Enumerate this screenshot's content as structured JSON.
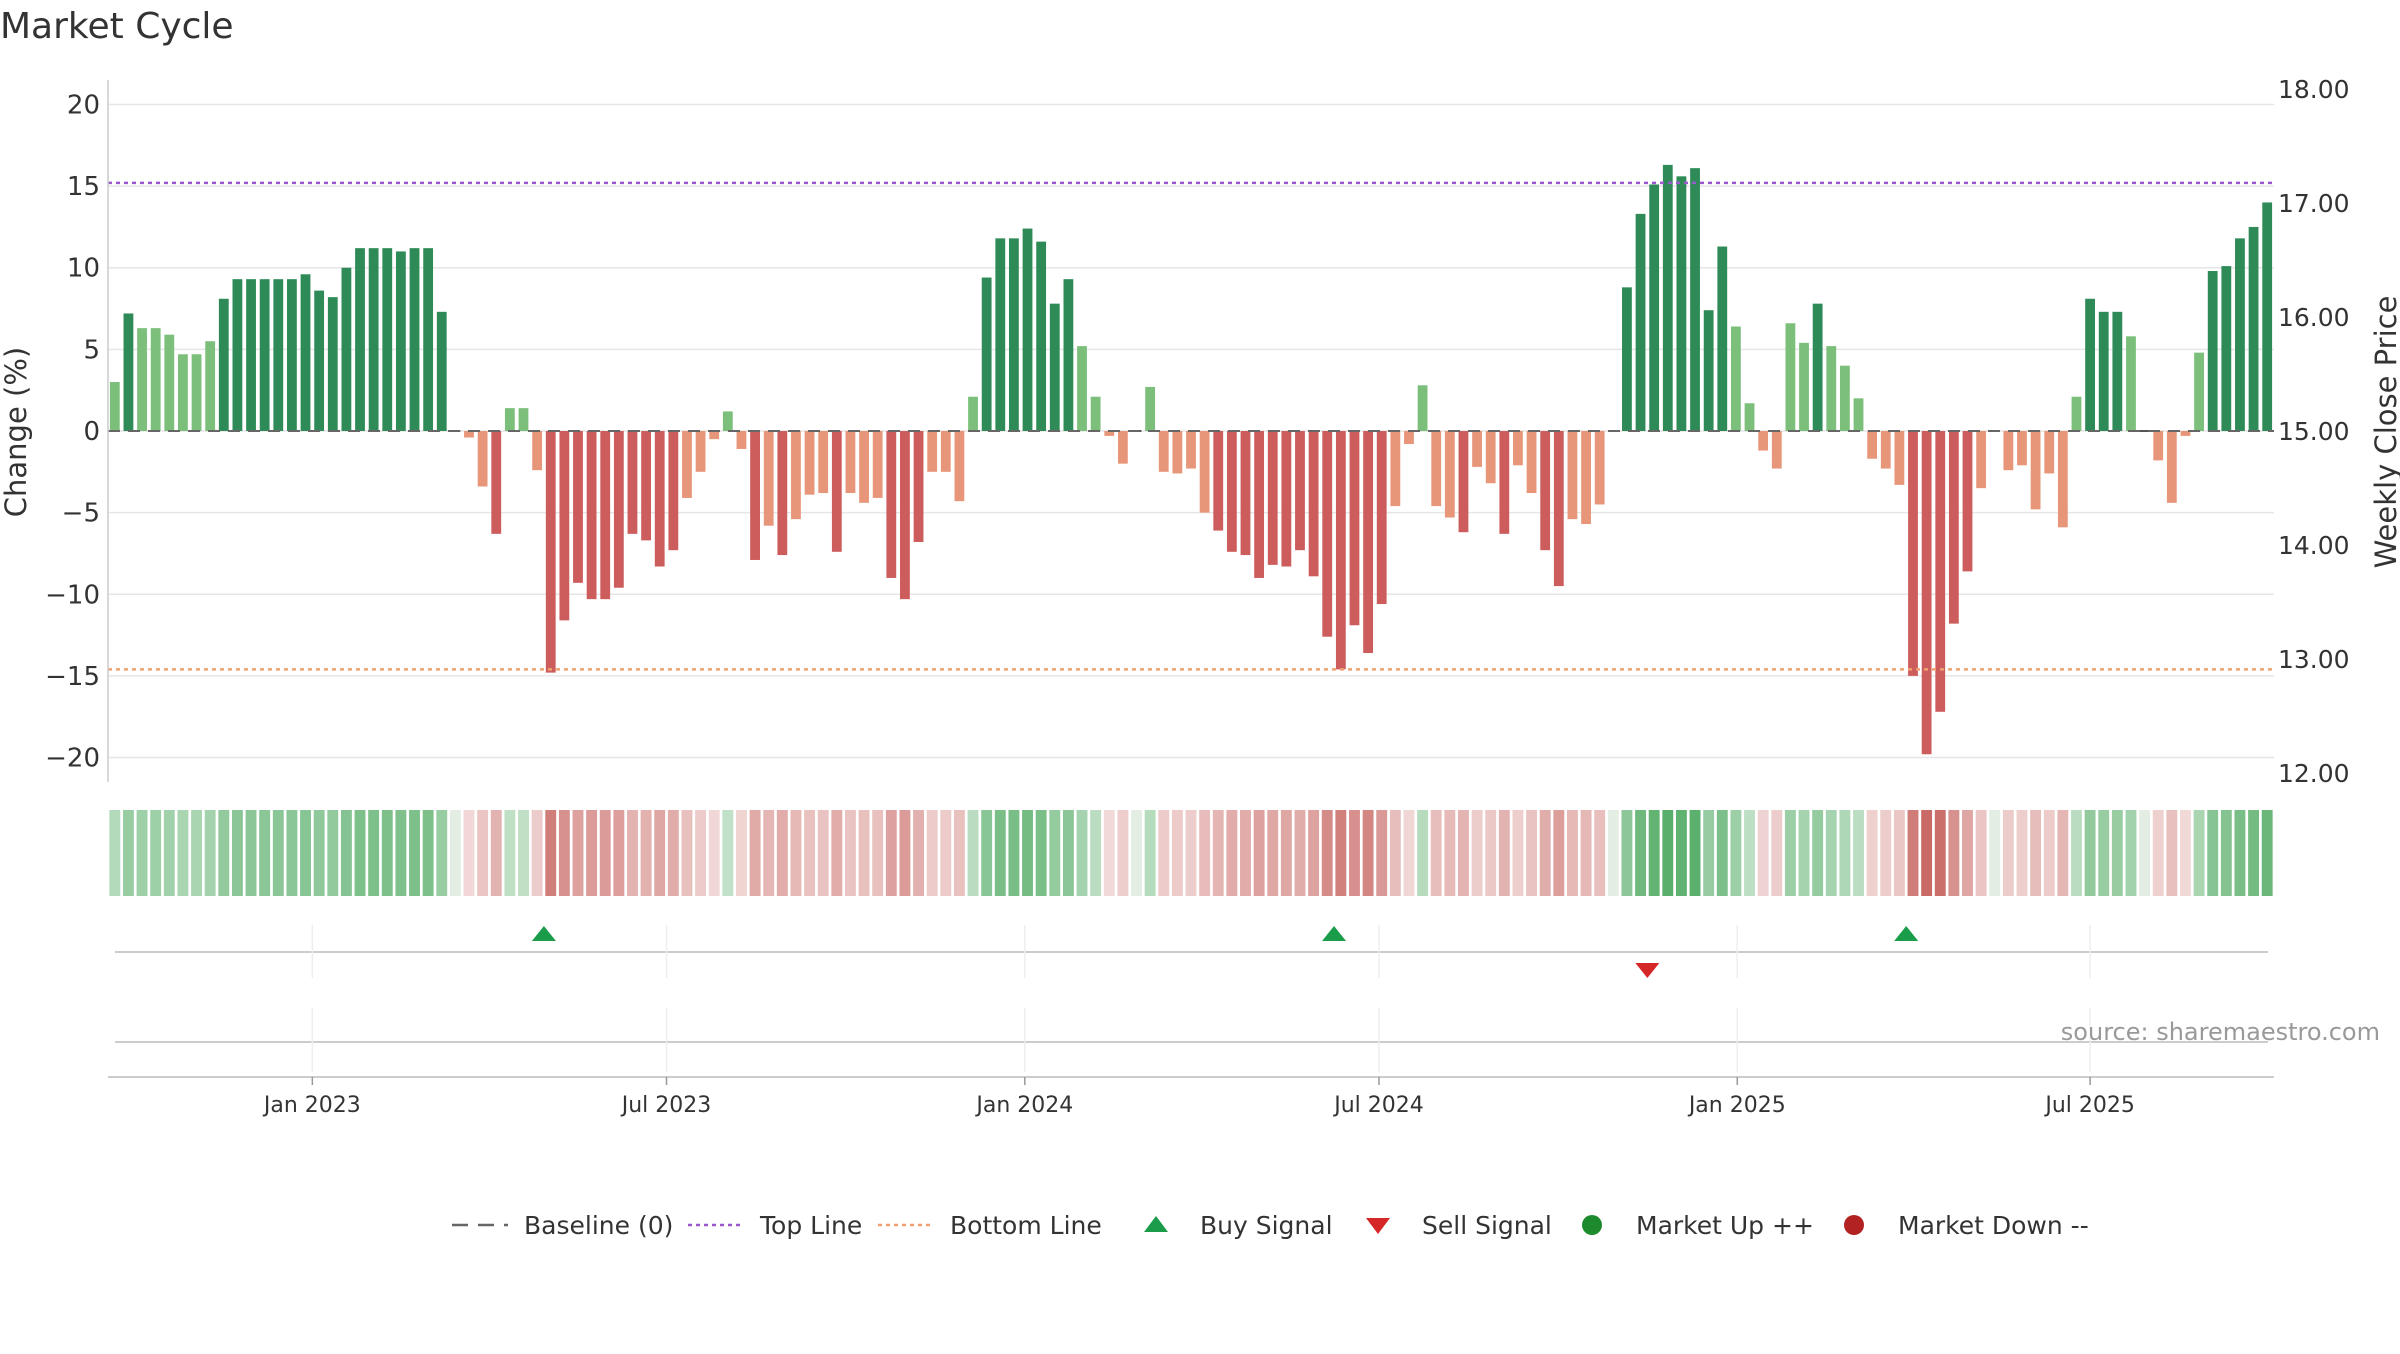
{
  "chart_data": {
    "type": "bar",
    "title": "Market Cycle",
    "ylabel": "Change (%)",
    "y2label": "Weekly Close Price",
    "ylim": [
      -21.5,
      21.5
    ],
    "y2lim": [
      11.92,
      18.08
    ],
    "yticks": [
      20,
      15,
      10,
      5,
      0,
      -5,
      -10,
      -15,
      -20
    ],
    "ytick_labels": [
      "20",
      "15",
      "10",
      "5",
      "0",
      "−5",
      "−10",
      "−15",
      "−20"
    ],
    "y2ticks": [
      18,
      17,
      16,
      15,
      14,
      13,
      12
    ],
    "y2tick_labels": [
      "18.00",
      "17.00",
      "16.00",
      "15.00",
      "14.00",
      "13.00",
      "12.00"
    ],
    "xticks": [
      {
        "label": "Jan 2023",
        "index": 14.5
      },
      {
        "label": "Jul 2023",
        "index": 40.5
      },
      {
        "label": "Jan 2024",
        "index": 66.8
      },
      {
        "label": "Jul 2024",
        "index": 92.8
      },
      {
        "label": "Jan 2025",
        "index": 119.1
      },
      {
        "label": "Jul 2025",
        "index": 145.0
      }
    ],
    "top_line": 15.2,
    "bottom_line": -14.6,
    "baseline": 0,
    "values": [
      3,
      7.2,
      6.3,
      6.3,
      5.9,
      4.7,
      4.7,
      5.5,
      8.1,
      9.3,
      9.3,
      9.3,
      9.3,
      9.3,
      9.6,
      8.6,
      8.2,
      10,
      11.2,
      11.2,
      11.2,
      11,
      11.2,
      11.2,
      7.3,
      0,
      -0.4,
      -3.4,
      -6.3,
      1.4,
      1.4,
      -2.4,
      -14.8,
      -11.6,
      -9.3,
      -10.3,
      -10.3,
      -9.6,
      -6.3,
      -6.7,
      -8.3,
      -7.3,
      -4.1,
      -2.5,
      -0.5,
      1.2,
      -1.1,
      -7.9,
      -5.8,
      -7.6,
      -5.4,
      -3.9,
      -3.8,
      -7.4,
      -3.8,
      -4.4,
      -4.1,
      -9,
      -10.3,
      -6.8,
      -2.5,
      -2.5,
      -4.3,
      2.1,
      9.4,
      11.8,
      11.8,
      12.4,
      11.6,
      7.8,
      9.3,
      5.2,
      2.1,
      -0.3,
      -2,
      0,
      2.7,
      -2.5,
      -2.6,
      -2.3,
      -5,
      -6.1,
      -7.4,
      -7.6,
      -9,
      -8.2,
      -8.3,
      -7.3,
      -8.9,
      -12.6,
      -14.6,
      -11.9,
      -13.6,
      -10.6,
      -4.6,
      -0.8,
      2.8,
      -4.6,
      -5.3,
      -6.2,
      -2.2,
      -3.2,
      -6.3,
      -2.1,
      -3.8,
      -7.3,
      -9.5,
      -5.4,
      -5.7,
      -4.5,
      0,
      8.8,
      13.3,
      15.1,
      16.3,
      15.6,
      16.1,
      7.4,
      11.3,
      6.4,
      1.7,
      -1.2,
      -2.3,
      6.6,
      5.4,
      7.8,
      5.2,
      4,
      2,
      -1.7,
      -2.3,
      -3.3,
      -15,
      -19.8,
      -17.2,
      -11.8,
      -8.6,
      -3.5,
      0,
      -2.4,
      -2.1,
      -4.8,
      -2.6,
      -5.9,
      2.1,
      8.1,
      7.3,
      7.3,
      5.8,
      0,
      -1.8,
      -4.4,
      -0.3,
      4.8,
      9.8,
      10.1,
      11.8,
      12.5,
      14
    ],
    "buy_signal_indices": [
      31.5,
      89.5,
      131.5
    ],
    "sell_signal_indices": [
      112.5
    ],
    "legend": [
      {
        "label": "Baseline (0)",
        "kind": "dash",
        "color": "#666666"
      },
      {
        "label": "Top Line",
        "kind": "dot",
        "color": "#9b59d0"
      },
      {
        "label": "Bottom Line",
        "kind": "dot",
        "color": "#f0a070"
      },
      {
        "label": "Buy Signal",
        "kind": "tri-up",
        "color": "#1a9c4a"
      },
      {
        "label": "Sell Signal",
        "kind": "tri-down",
        "color": "#d62728"
      },
      {
        "label": "Market Up ++",
        "kind": "circle",
        "color": "#1e8a2e"
      },
      {
        "label": "Market Down --",
        "kind": "circle",
        "color": "#b22222"
      }
    ],
    "source": "source: sharemaestro.com"
  },
  "colors": {
    "strong_up": "#2e8b57",
    "up": "#7bbf7b",
    "down": "#e8967a",
    "strong_down": "#cd5c5c",
    "grid": "#e6e6e6",
    "axis": "#cccccc"
  }
}
